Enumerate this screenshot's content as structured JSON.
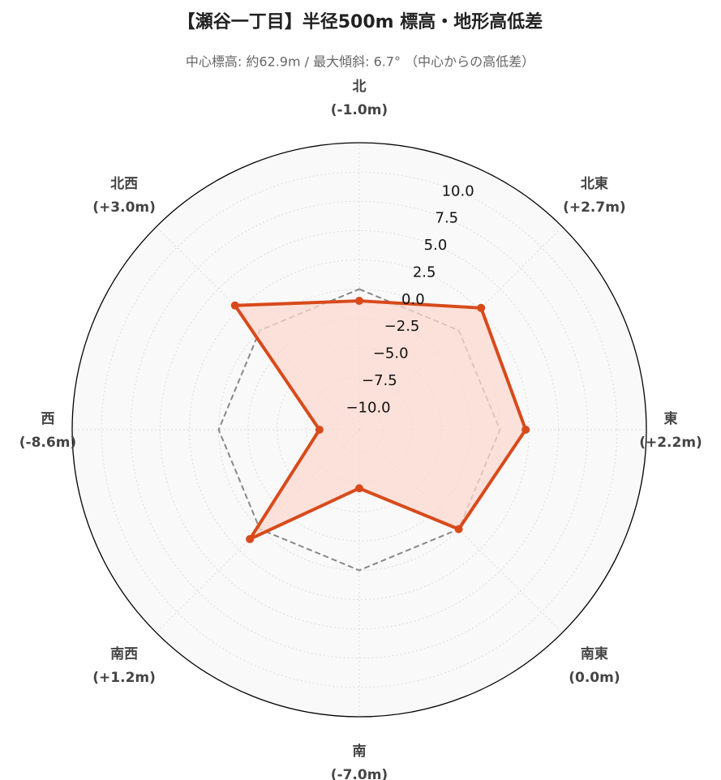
{
  "chart_data": {
    "type": "radar",
    "title": "【瀬谷一丁目】半径500m 標高・地形高低差",
    "subtitle": "中心標高: 約62.9m / 最大傾斜: 6.7° （中心からの高低差）",
    "categories": [
      "北",
      "北東",
      "東",
      "南東",
      "南",
      "南西",
      "西",
      "北西"
    ],
    "values": [
      -1.0,
      2.7,
      2.2,
      0.0,
      -7.0,
      1.2,
      -8.6,
      3.0
    ],
    "value_labels": [
      "(-1.0m)",
      "(+2.7m)",
      "(+2.2m)",
      "(0.0m)",
      "(-7.0m)",
      "(+1.2m)",
      "(-8.6m)",
      "(+3.0m)"
    ],
    "color": "#d84a1b",
    "fill_color": "#fbd8cd",
    "ylim": [
      -12,
      12.5
    ],
    "yticks": [
      {
        "value": -10,
        "label": "−10.0"
      },
      {
        "value": -7.5,
        "label": "−7.5"
      },
      {
        "value": -5,
        "label": "−5.0"
      },
      {
        "value": -2.5,
        "label": "−2.5"
      },
      {
        "value": 0,
        "label": "0.0"
      },
      {
        "value": 2.5,
        "label": "2.5"
      },
      {
        "value": 5,
        "label": "5.0"
      },
      {
        "value": 7.5,
        "label": "7.5"
      },
      {
        "value": 10,
        "label": "10.0"
      }
    ],
    "reference_line": 0,
    "grid": true
  }
}
